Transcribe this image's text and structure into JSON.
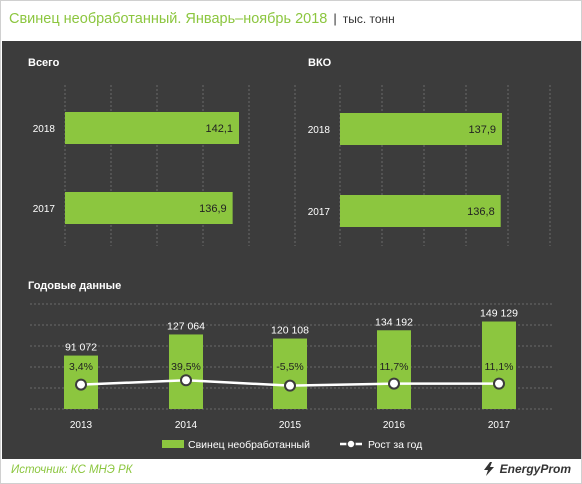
{
  "header": {
    "title": "Свинец необработанный. Январь–ноябрь 2018",
    "separator": "|",
    "unit": "тыс. тонн"
  },
  "footer": {
    "source": "Источник: КС МНЭ РК",
    "logo": "EnergyProm"
  },
  "colors": {
    "bar": "#8cc63f",
    "panel": "#3c3c3c",
    "grid": "#6a6a6a",
    "line": "#ffffff"
  },
  "chart_data": [
    {
      "type": "bar",
      "orientation": "horizontal",
      "title": "Всего",
      "categories": [
        "2018",
        "2017"
      ],
      "values": [
        142.1,
        136.9
      ],
      "value_labels": [
        "142,1",
        "136,9"
      ]
    },
    {
      "type": "bar",
      "orientation": "horizontal",
      "title": "ВКО",
      "categories": [
        "2018",
        "2017"
      ],
      "values": [
        137.9,
        136.8
      ],
      "value_labels": [
        "137,9",
        "136,8"
      ]
    },
    {
      "type": "bar+line",
      "title": "Годовые данные",
      "categories": [
        "2013",
        "2014",
        "2015",
        "2016",
        "2017"
      ],
      "series": [
        {
          "name": "Свинец необработанный",
          "type": "bar",
          "values": [
            91072,
            127064,
            120108,
            134192,
            149129
          ],
          "value_labels": [
            "91 072",
            "127 064",
            "120 108",
            "134 192",
            "149 129"
          ]
        },
        {
          "name": "Рост за год",
          "type": "line",
          "values": [
            3.4,
            39.5,
            -5.5,
            11.7,
            11.1
          ],
          "value_labels": [
            "3,4%",
            "39,5%",
            "-5,5%",
            "11,7%",
            "11,1%"
          ]
        }
      ],
      "legend": "bottom-center"
    }
  ]
}
